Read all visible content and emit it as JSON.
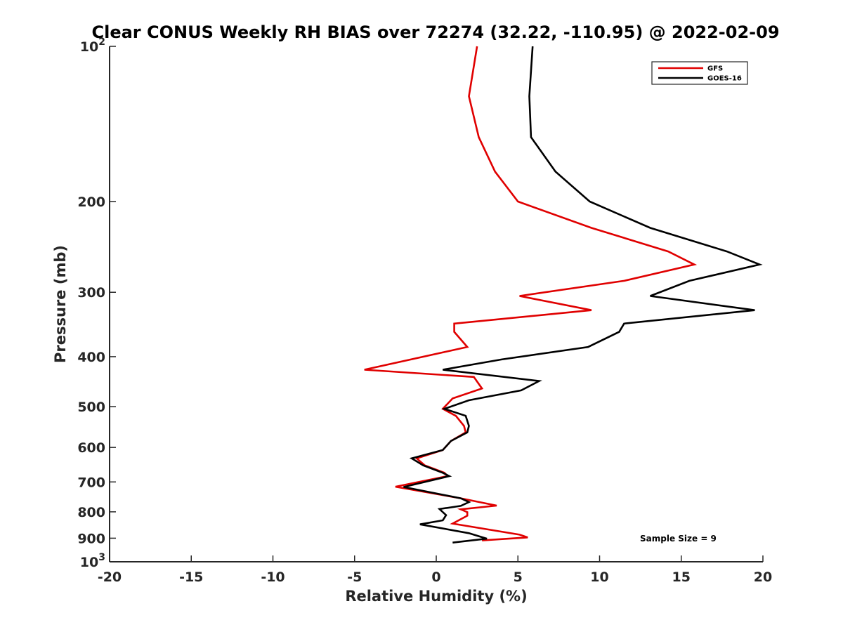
{
  "chart_data": {
    "type": "line",
    "title": "Clear CONUS Weekly RH BIAS over 72274 (32.22, -110.95) @ 2022-02-09",
    "xlabel": "Relative Humidity (%)",
    "ylabel": "Pressure (mb)",
    "xlim": [
      -20,
      20
    ],
    "ylim": [
      100,
      1000
    ],
    "y_scale": "log",
    "y_reversed": true,
    "grid": false,
    "legend_position": "top-right",
    "x_ticks": [
      "-20",
      "-15",
      "-10",
      "-5",
      "0",
      "5",
      "10",
      "15",
      "20"
    ],
    "x_tick_values": [
      -20,
      -15,
      -10,
      -5,
      0,
      5,
      10,
      15,
      20
    ],
    "y_ticks": [
      {
        "value": 100,
        "base": "10",
        "exp": "2"
      },
      {
        "value": 200,
        "label": "200"
      },
      {
        "value": 300,
        "label": "300"
      },
      {
        "value": 400,
        "label": "400"
      },
      {
        "value": 500,
        "label": "500"
      },
      {
        "value": 600,
        "label": "600"
      },
      {
        "value": 700,
        "label": "700"
      },
      {
        "value": 800,
        "label": "800"
      },
      {
        "value": 900,
        "label": "900"
      },
      {
        "value": 1000,
        "base": "10",
        "exp": "3"
      }
    ],
    "series": [
      {
        "name": "GFS",
        "color": "#e00000",
        "points": [
          [
            2.5,
            100
          ],
          [
            2.0,
            125
          ],
          [
            2.6,
            150
          ],
          [
            3.6,
            175
          ],
          [
            5.0,
            200
          ],
          [
            9.5,
            225
          ],
          [
            14.2,
            250
          ],
          [
            15.8,
            265
          ],
          [
            11.5,
            285
          ],
          [
            5.1,
            305
          ],
          [
            9.5,
            325
          ],
          [
            1.1,
            345
          ],
          [
            1.1,
            358
          ],
          [
            1.9,
            383
          ],
          [
            -4.4,
            424
          ],
          [
            2.3,
            438
          ],
          [
            2.8,
            461
          ],
          [
            1.0,
            482
          ],
          [
            0.4,
            505
          ],
          [
            1.2,
            521
          ],
          [
            1.7,
            545
          ],
          [
            1.8,
            561
          ],
          [
            0.9,
            583
          ],
          [
            0.4,
            607
          ],
          [
            -1.2,
            630
          ],
          [
            -0.7,
            650
          ],
          [
            0.5,
            672
          ],
          [
            0.7,
            682
          ],
          [
            -2.5,
            715
          ],
          [
            1.5,
            753
          ],
          [
            3.7,
            778
          ],
          [
            1.5,
            791
          ],
          [
            1.9,
            801
          ],
          [
            1.9,
            814
          ],
          [
            1.0,
            843
          ],
          [
            5.1,
            886
          ],
          [
            5.6,
            897
          ],
          [
            2.8,
            909
          ]
        ]
      },
      {
        "name": "GOES-16",
        "color": "#000000",
        "points": [
          [
            5.9,
            100
          ],
          [
            5.7,
            125
          ],
          [
            5.8,
            150
          ],
          [
            7.3,
            175
          ],
          [
            9.4,
            200
          ],
          [
            13.1,
            225
          ],
          [
            17.8,
            250
          ],
          [
            19.8,
            265
          ],
          [
            15.5,
            285
          ],
          [
            13.1,
            305
          ],
          [
            19.5,
            325
          ],
          [
            11.5,
            345
          ],
          [
            11.2,
            358
          ],
          [
            9.3,
            383
          ],
          [
            4.0,
            405
          ],
          [
            0.4,
            424
          ],
          [
            6.3,
            446
          ],
          [
            5.2,
            465
          ],
          [
            2.0,
            486
          ],
          [
            0.5,
            505
          ],
          [
            1.8,
            521
          ],
          [
            2.0,
            545
          ],
          [
            1.9,
            561
          ],
          [
            0.9,
            583
          ],
          [
            0.4,
            607
          ],
          [
            -1.5,
            630
          ],
          [
            -0.8,
            650
          ],
          [
            0.4,
            672
          ],
          [
            0.8,
            682
          ],
          [
            -2.0,
            716
          ],
          [
            1.5,
            753
          ],
          [
            2.0,
            766
          ],
          [
            1.5,
            779
          ],
          [
            0.2,
            790
          ],
          [
            0.6,
            812
          ],
          [
            0.4,
            831
          ],
          [
            -1.0,
            846
          ],
          [
            2.0,
            880
          ],
          [
            3.1,
            902
          ],
          [
            1.0,
            918
          ]
        ]
      }
    ],
    "annotation": "Sample Size = 9"
  }
}
